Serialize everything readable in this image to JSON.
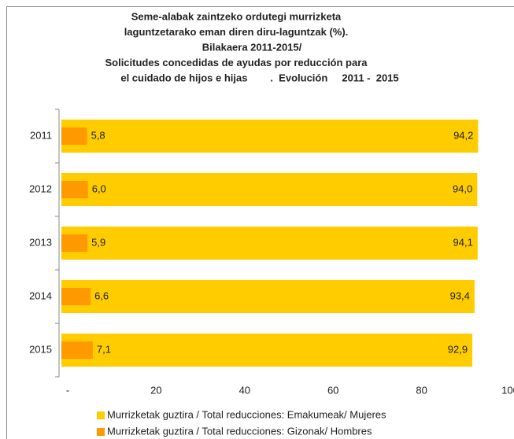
{
  "chart_data": {
    "type": "bar",
    "orientation": "horizontal",
    "overlap": true,
    "title": [
      "Seme-alabak zaintzeko ordutegi murrizketa",
      "laguntzetarako eman diren diru-laguntzak (%).",
      "Bilakaera 2011-2015/",
      "Solicitudes concedidas de ayudas por reducción para",
      "el cuidado de hijos e hijas        .  Evolución     2011 -  2015"
    ],
    "categories": [
      "2011",
      "2012",
      "2013",
      "2014",
      "2015"
    ],
    "series": [
      {
        "name": "Murrizketak guztira / Total reducciones: Emakumeak/ Mujeres",
        "color": "#ffcc00",
        "values": [
          94.2,
          94.0,
          94.1,
          93.4,
          92.9
        ],
        "value_labels": [
          "94,2",
          "94,0",
          "94,1",
          "93,4",
          "92,9"
        ]
      },
      {
        "name": "Murrizketak guztira / Total reducciones: Gizonak/ Hombres",
        "color": "#ff9900",
        "values": [
          5.8,
          6.0,
          5.9,
          6.6,
          7.1
        ],
        "value_labels": [
          "5,8",
          "6,0",
          "5,9",
          "6,6",
          "7,1"
        ]
      }
    ],
    "xlim": [
      0,
      100
    ],
    "xticks": [
      {
        "value": 0,
        "label": "-"
      },
      20,
      40,
      60,
      80,
      100
    ]
  }
}
